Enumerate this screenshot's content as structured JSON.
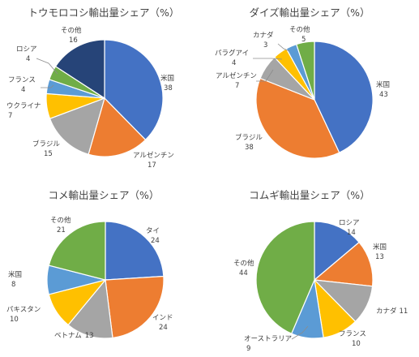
{
  "chart_data": [
    {
      "type": "pie",
      "title": "トウモロコシ輸出量シェア（%）",
      "slices": [
        {
          "label": "米国",
          "value": 38,
          "color": "#4472C4"
        },
        {
          "label": "アルゼンチン",
          "value": 17,
          "color": "#ED7D31"
        },
        {
          "label": "ブラジル",
          "value": 15,
          "color": "#A5A5A5"
        },
        {
          "label": "ウクライナ",
          "value": 7,
          "color": "#FFC000"
        },
        {
          "label": "フランス",
          "value": 4,
          "color": "#5B9BD5"
        },
        {
          "label": "ロシア",
          "value": 4,
          "color": "#70AD47"
        },
        {
          "label": "その他",
          "value": 16,
          "color": "#264478"
        }
      ]
    },
    {
      "type": "pie",
      "title": "ダイズ輸出量シェア（%）",
      "slices": [
        {
          "label": "米国",
          "value": 43,
          "color": "#4472C4"
        },
        {
          "label": "ブラジル",
          "value": 38,
          "color": "#ED7D31"
        },
        {
          "label": "アルゼンチン",
          "value": 7,
          "color": "#A5A5A5"
        },
        {
          "label": "パラグアイ",
          "value": 4,
          "color": "#FFC000"
        },
        {
          "label": "カナダ",
          "value": 3,
          "color": "#5B9BD5"
        },
        {
          "label": "その他",
          "value": 5,
          "color": "#70AD47"
        }
      ]
    },
    {
      "type": "pie",
      "title": "コメ輸出量シェア（%）",
      "slices": [
        {
          "label": "タイ",
          "value": 24,
          "color": "#4472C4"
        },
        {
          "label": "インド",
          "value": 24,
          "color": "#ED7D31"
        },
        {
          "label": "ベトナム",
          "value": 13,
          "color": "#A5A5A5"
        },
        {
          "label": "パキスタン",
          "value": 10,
          "color": "#FFC000"
        },
        {
          "label": "米国",
          "value": 8,
          "color": "#5B9BD5"
        },
        {
          "label": "その他",
          "value": 21,
          "color": "#70AD47"
        }
      ]
    },
    {
      "type": "pie",
      "title": "コムギ輸出量シェア（%）",
      "slices": [
        {
          "label": "ロシア",
          "value": 14,
          "color": "#4472C4"
        },
        {
          "label": "米国",
          "value": 13,
          "color": "#ED7D31"
        },
        {
          "label": "カナダ",
          "value": 11,
          "color": "#A5A5A5"
        },
        {
          "label": "フランス",
          "value": 10,
          "color": "#FFC000"
        },
        {
          "label": "オーストラリア",
          "value": 9,
          "color": "#5B9BD5"
        },
        {
          "label": "その他",
          "value": 44,
          "color": "#70AD47"
        }
      ]
    }
  ]
}
